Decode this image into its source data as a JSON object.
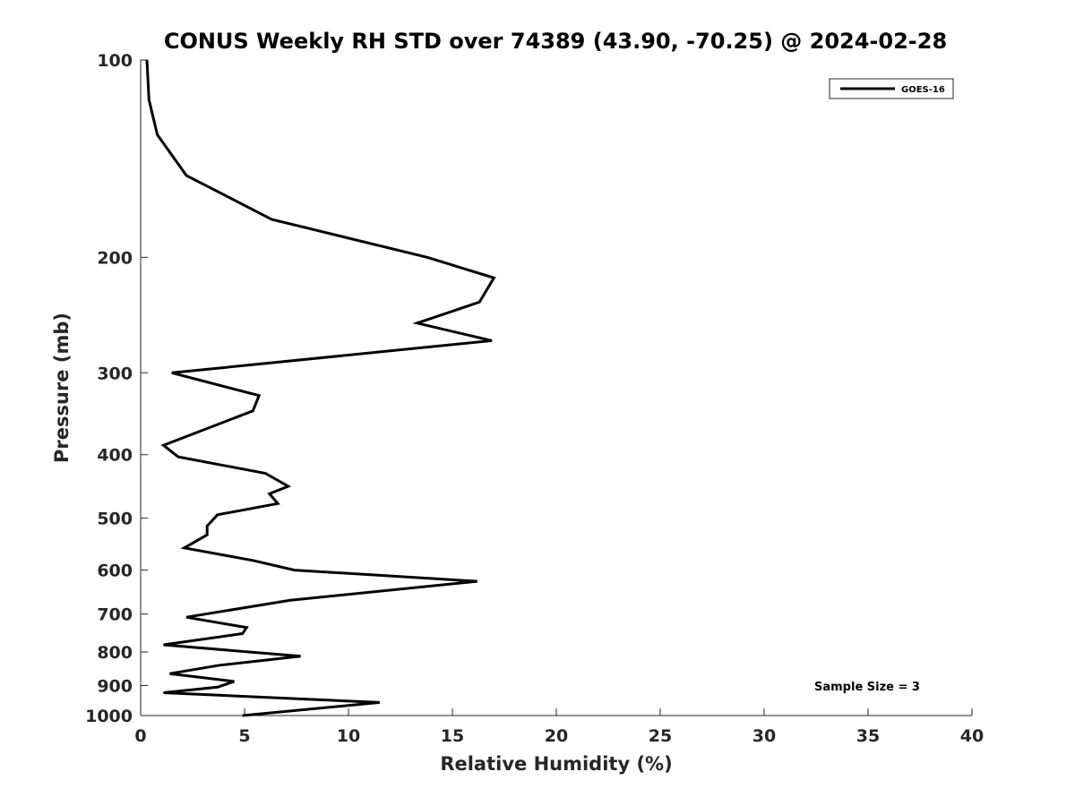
{
  "chart_data": {
    "type": "line",
    "title": "CONUS Weekly RH STD over 74389 (43.90, -70.25) @ 2024-02-28",
    "xlabel": "Relative Humidity (%)",
    "ylabel": "Pressure (mb)",
    "xlim": [
      0,
      40
    ],
    "ylim": [
      1000,
      100
    ],
    "yscale": "log",
    "y_reversed": true,
    "xticks": [
      0,
      5,
      10,
      15,
      20,
      25,
      30,
      35,
      40
    ],
    "yticks": [
      100,
      200,
      300,
      400,
      500,
      600,
      700,
      800,
      900,
      1000
    ],
    "grid": false,
    "legend_position": "top-right",
    "annotation": "Sample Size = 3",
    "series": [
      {
        "name": "GOES-16",
        "color": "#000000",
        "x": [
          0.3,
          0.4,
          0.8,
          2.2,
          6.3,
          13.8,
          17.0,
          16.3,
          13.3,
          16.9,
          1.5,
          5.7,
          5.4,
          1.1,
          1.8,
          6.0,
          7.1,
          6.2,
          6.6,
          3.7,
          3.2,
          3.2,
          2.1,
          5.4,
          7.4,
          16.2,
          7.2,
          2.2,
          5.1,
          4.9,
          1.1,
          7.7,
          3.8,
          1.4,
          4.5,
          3.7,
          1.1,
          11.5,
          4.9
        ],
        "y": [
          100,
          115,
          130,
          150,
          175,
          200,
          215,
          234,
          252,
          268,
          300,
          325,
          343,
          387,
          403,
          427,
          447,
          459,
          475,
          494,
          514,
          530,
          555,
          580,
          600,
          624,
          667,
          708,
          734,
          750,
          780,
          812,
          838,
          863,
          887,
          905,
          923,
          955,
          1000
        ]
      }
    ]
  }
}
